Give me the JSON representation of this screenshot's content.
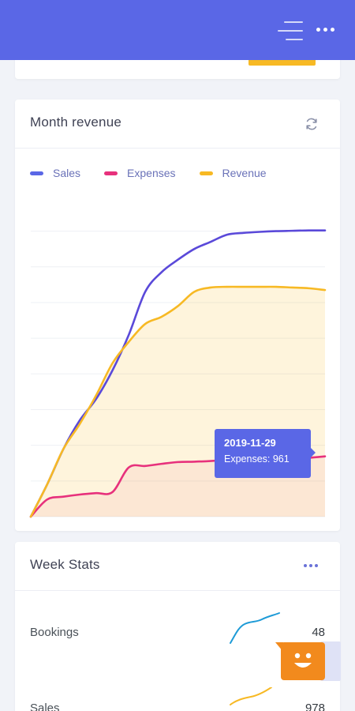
{
  "colors": {
    "topbar": "#5a67e6",
    "sales": "#5a49d9",
    "expenses": "#e7317c",
    "revenue": "#f7b924",
    "accent_orange": "#f28a1d"
  },
  "topbar": {
    "menu_icon": "hamburger-menu-icon",
    "more_icon": "more-dots-icon"
  },
  "month_revenue": {
    "title": "Month revenue",
    "refresh_icon": "refresh-icon",
    "legend": [
      {
        "label": "Sales",
        "color": "#5a67e6"
      },
      {
        "label": "Expenses",
        "color": "#e7317c"
      },
      {
        "label": "Revenue",
        "color": "#f7b924"
      }
    ],
    "tooltip": {
      "date": "2019-11-29",
      "text": "Expenses: 961"
    }
  },
  "chart_data": {
    "type": "area",
    "title": "Month revenue",
    "x": [
      0,
      1,
      2,
      3,
      4,
      5,
      6,
      7,
      8,
      9,
      10,
      11,
      12,
      13,
      14,
      15,
      16,
      17,
      18
    ],
    "series": [
      {
        "name": "Sales",
        "values": [
          0,
          900,
          1900,
          2700,
          3300,
          4100,
          5100,
          6300,
          6850,
          7200,
          7500,
          7700,
          7900,
          7950,
          7980,
          8000,
          8010,
          8020,
          8020
        ],
        "color": "#5a49d9"
      },
      {
        "name": "Expenses",
        "values": [
          0,
          480,
          560,
          620,
          660,
          690,
          1380,
          1420,
          1480,
          1530,
          1540,
          1560,
          1590,
          1600,
          1610,
          1620,
          1640,
          1650,
          1690
        ],
        "color": "#e7317c"
      },
      {
        "name": "Revenue",
        "values": [
          0,
          900,
          1900,
          2600,
          3400,
          4300,
          4900,
          5400,
          5600,
          5900,
          6300,
          6420,
          6440,
          6440,
          6440,
          6440,
          6420,
          6400,
          6350
        ],
        "color": "#f7b924"
      }
    ],
    "ylim": [
      0,
      8500
    ],
    "grid": true,
    "legend": "top-left",
    "xlabel": "",
    "ylabel": ""
  },
  "week_stats": {
    "title": "Week Stats",
    "more_icon": "more-dots-icon",
    "rows": [
      {
        "label": "Bookings",
        "value": "48",
        "color": "#1e9bd7"
      },
      {
        "label": "Sales",
        "value": "978",
        "color": "#f7b924"
      }
    ]
  },
  "chat_widget": {
    "icon": "smiley-face-icon"
  }
}
